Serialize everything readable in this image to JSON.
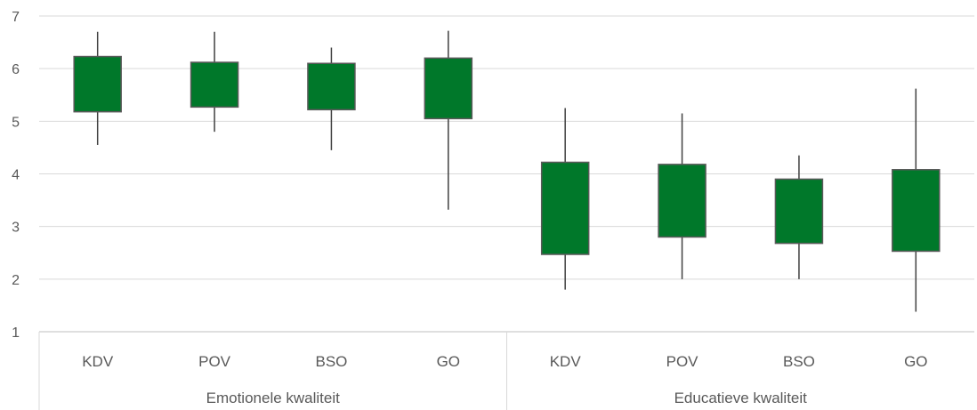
{
  "chart_data": {
    "type": "boxplot",
    "title": "",
    "xlabel": "",
    "ylabel": "",
    "ylim": [
      1,
      7
    ],
    "yticks": [
      1,
      2,
      3,
      4,
      5,
      6,
      7
    ],
    "grid": true,
    "legend": "none",
    "box_color": "#00782a",
    "box_border_color": "#595959",
    "whisker_color": "#404040",
    "grid_color": "#d9d9d9",
    "groups": [
      {
        "label": "Emotionele kwaliteit",
        "categories": [
          {
            "label": "KDV",
            "min": 4.55,
            "q1": 5.18,
            "q3": 6.23,
            "max": 6.7
          },
          {
            "label": "POV",
            "min": 4.8,
            "q1": 5.27,
            "q3": 6.12,
            "max": 6.7
          },
          {
            "label": "BSO",
            "min": 4.45,
            "q1": 5.22,
            "q3": 6.1,
            "max": 6.4
          },
          {
            "label": "GO",
            "min": 3.32,
            "q1": 5.05,
            "q3": 6.2,
            "max": 6.72
          }
        ]
      },
      {
        "label": "Educatieve kwaliteit",
        "categories": [
          {
            "label": "KDV",
            "min": 1.8,
            "q1": 2.47,
            "q3": 4.22,
            "max": 5.25
          },
          {
            "label": "POV",
            "min": 2.0,
            "q1": 2.8,
            "q3": 4.18,
            "max": 5.15
          },
          {
            "label": "BSO",
            "min": 2.0,
            "q1": 2.68,
            "q3": 3.9,
            "max": 4.35
          },
          {
            "label": "GO",
            "min": 1.38,
            "q1": 2.53,
            "q3": 4.08,
            "max": 5.62
          }
        ]
      }
    ]
  }
}
